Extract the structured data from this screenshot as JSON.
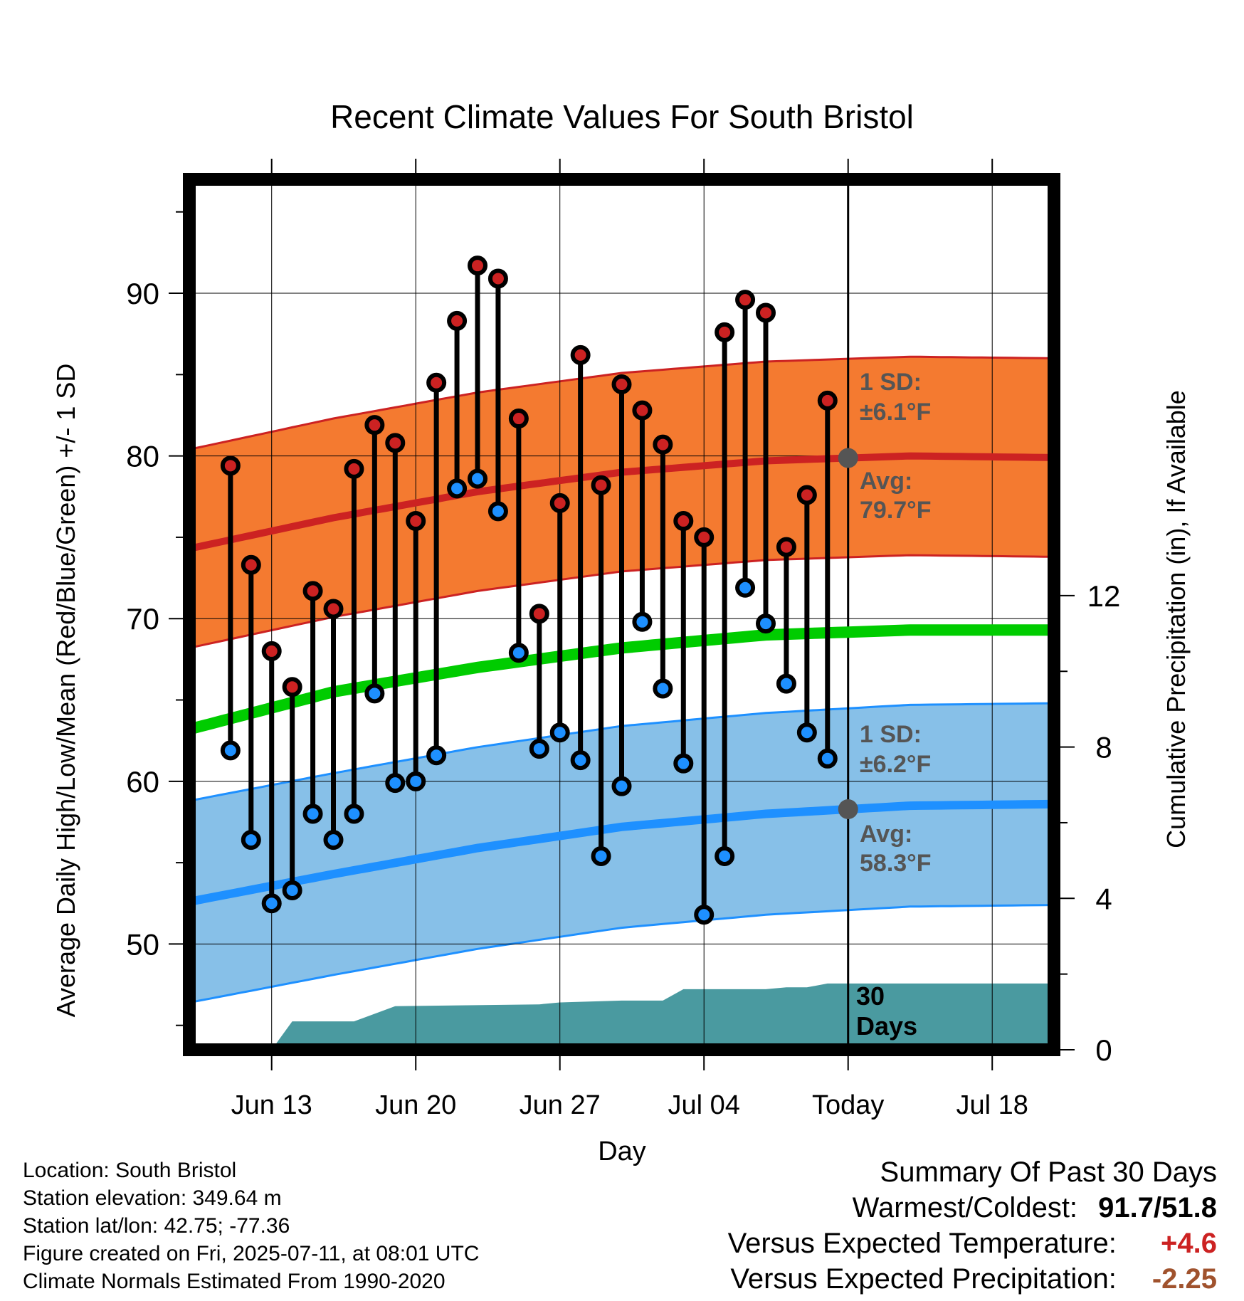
{
  "chart_data": {
    "type": "line",
    "title": "Recent Climate Values For South Bristol",
    "xlabel": "Day",
    "ylabel": "Average Daily High/Low/Mean (Red/Blue/Green) +/- 1 SD",
    "y2label": "Cumulative Precipitation (in), If Available",
    "ylim": [
      43.5,
      97
    ],
    "y2lim": [
      0,
      23
    ],
    "xlim": [
      "2025-06-09",
      "2025-07-21"
    ],
    "yticks": [
      "50",
      "60",
      "70",
      "80",
      "90"
    ],
    "y2ticks": [
      "0",
      "4",
      "8",
      "12"
    ],
    "xticks": [
      {
        "date": "2025-06-13",
        "label": "Jun 13"
      },
      {
        "date": "2025-06-20",
        "label": "Jun 20"
      },
      {
        "date": "2025-06-27",
        "label": "Jun 27"
      },
      {
        "date": "2025-07-04",
        "label": "Jul 04"
      },
      {
        "date": "2025-07-11",
        "label": "Today"
      },
      {
        "date": "2025-07-18",
        "label": "Jul 18"
      }
    ],
    "grid": true,
    "colors": {
      "high": "#cc2222",
      "high_band": "#f47a30",
      "low": "#1e90ff",
      "low_band": "#87c0e8",
      "mean": "#00cc00",
      "precip": "#4a9aa0",
      "annotation": "#555555"
    },
    "normals": {
      "dates": [
        "2025-06-09",
        "2025-06-16",
        "2025-06-23",
        "2025-06-30",
        "2025-07-07",
        "2025-07-14",
        "2025-07-21"
      ],
      "high_avg": [
        74.3,
        76.2,
        77.8,
        79.0,
        79.7,
        80.0,
        79.9
      ],
      "high_sd": 6.1,
      "low_avg": [
        52.6,
        54.3,
        55.9,
        57.2,
        58.0,
        58.5,
        58.6
      ],
      "low_sd": 6.2,
      "mean_avg": [
        63.2,
        65.5,
        67.0,
        68.2,
        69.0,
        69.3,
        69.3
      ]
    },
    "observed": {
      "dates": [
        "2025-06-11",
        "2025-06-12",
        "2025-06-13",
        "2025-06-14",
        "2025-06-15",
        "2025-06-16",
        "2025-06-17",
        "2025-06-18",
        "2025-06-19",
        "2025-06-20",
        "2025-06-21",
        "2025-06-22",
        "2025-06-23",
        "2025-06-24",
        "2025-06-25",
        "2025-06-26",
        "2025-06-27",
        "2025-06-28",
        "2025-06-29",
        "2025-06-30",
        "2025-07-01",
        "2025-07-02",
        "2025-07-03",
        "2025-07-04",
        "2025-07-05",
        "2025-07-06",
        "2025-07-07",
        "2025-07-08",
        "2025-07-09",
        "2025-07-10"
      ],
      "high": [
        79.4,
        73.3,
        68.0,
        65.8,
        71.7,
        70.6,
        79.2,
        81.9,
        80.8,
        76.0,
        84.5,
        88.3,
        91.7,
        90.9,
        82.3,
        70.3,
        77.1,
        86.2,
        78.2,
        84.4,
        82.8,
        80.7,
        76.0,
        75.0,
        87.6,
        89.6,
        88.8,
        74.4,
        77.6,
        83.4
      ],
      "low": [
        61.9,
        56.4,
        52.5,
        53.3,
        58.0,
        56.4,
        58.0,
        65.4,
        59.9,
        60.0,
        61.6,
        78.0,
        78.6,
        76.6,
        67.9,
        62.0,
        63.0,
        61.3,
        55.4,
        59.7,
        69.8,
        65.7,
        61.1,
        51.8,
        55.4,
        71.9,
        69.7,
        66.0,
        63.0,
        61.4
      ]
    },
    "precip_cum": {
      "dates": [
        "2025-06-09",
        "2025-06-13",
        "2025-06-14",
        "2025-06-17",
        "2025-06-19",
        "2025-06-26",
        "2025-06-27",
        "2025-06-30",
        "2025-07-02",
        "2025-07-03",
        "2025-07-07",
        "2025-07-08",
        "2025-07-09",
        "2025-07-10",
        "2025-07-21"
      ],
      "values": [
        0,
        0,
        0.75,
        0.75,
        1.15,
        1.2,
        1.25,
        1.3,
        1.3,
        1.6,
        1.6,
        1.65,
        1.65,
        1.75,
        1.75
      ]
    },
    "annotations": {
      "high_sd_title": "1 SD:",
      "high_sd_value": "±6.1°F",
      "high_avg_title": "Avg:",
      "high_avg_value": "79.7°F",
      "low_sd_title": "1 SD:",
      "low_sd_value": "±6.2°F",
      "low_avg_title": "Avg:",
      "low_avg_value": "58.3°F",
      "days_line1": "30",
      "days_line2": "Days"
    }
  },
  "footer": {
    "location": "Location: South Bristol",
    "elevation": "Station elevation: 349.64 m",
    "latlon": "Station lat/lon: 42.75; -77.36",
    "created": "Figure created on Fri, 2025-07-11, at 08:01 UTC",
    "normals": "Climate Normals Estimated From 1990-2020"
  },
  "summary": {
    "title": "Summary Of Past 30 Days",
    "warm_cold_label": "Warmest/Coldest:",
    "warm_cold_value": "91.7/51.8",
    "temp_label": "Versus Expected Temperature:",
    "temp_value": "+4.6",
    "temp_color": "#cc2222",
    "precip_label": "Versus Expected Precipitation:",
    "precip_value": "-2.25",
    "precip_color": "#a0522d"
  }
}
